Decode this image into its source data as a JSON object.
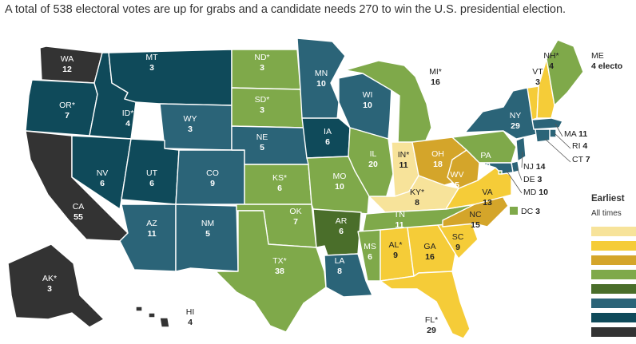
{
  "caption": "A total of 538 electoral votes are up for grabs and a candidate needs 270 to win the U.S. presidential election.",
  "colors": {
    "lightest_yellow": "#f7e39a",
    "yellow": "#f5cc38",
    "gold": "#d4a52a",
    "light_green": "#7fa94a",
    "dark_green": "#4a6e2a",
    "teal": "#2b6478",
    "dark_teal": "#0f4a5a",
    "charcoal": "#333333"
  },
  "legend": {
    "title": "Earliest",
    "subtitle": "All times",
    "swatches": [
      "#f7e39a",
      "#f5cc38",
      "#d4a52a",
      "#7fa94a",
      "#4a6e2a",
      "#2b6478",
      "#0f4a5a",
      "#333333"
    ]
  },
  "states": [
    {
      "id": "WA",
      "label": "WA",
      "votes": "12",
      "color": "#333333",
      "text": "#ffffff"
    },
    {
      "id": "OR",
      "label": "OR*",
      "votes": "7",
      "color": "#0f4a5a",
      "text": "#ffffff"
    },
    {
      "id": "CA",
      "label": "CA",
      "votes": "55",
      "color": "#333333",
      "text": "#ffffff"
    },
    {
      "id": "ID",
      "label": "ID*",
      "votes": "4",
      "color": "#0f4a5a",
      "text": "#ffffff"
    },
    {
      "id": "NV",
      "label": "NV",
      "votes": "6",
      "color": "#0f4a5a",
      "text": "#ffffff"
    },
    {
      "id": "MT",
      "label": "MT",
      "votes": "3",
      "color": "#0f4a5a",
      "text": "#ffffff"
    },
    {
      "id": "WY",
      "label": "WY",
      "votes": "3",
      "color": "#2b6478",
      "text": "#ffffff"
    },
    {
      "id": "UT",
      "label": "UT",
      "votes": "6",
      "color": "#0f4a5a",
      "text": "#ffffff"
    },
    {
      "id": "CO",
      "label": "CO",
      "votes": "9",
      "color": "#2b6478",
      "text": "#ffffff"
    },
    {
      "id": "AZ",
      "label": "AZ",
      "votes": "11",
      "color": "#2b6478",
      "text": "#ffffff"
    },
    {
      "id": "NM",
      "label": "NM",
      "votes": "5",
      "color": "#2b6478",
      "text": "#ffffff"
    },
    {
      "id": "ND",
      "label": "ND*",
      "votes": "3",
      "color": "#7fa94a",
      "text": "#ffffff"
    },
    {
      "id": "SD",
      "label": "SD*",
      "votes": "3",
      "color": "#7fa94a",
      "text": "#ffffff"
    },
    {
      "id": "NE",
      "label": "NE",
      "votes": "5",
      "color": "#2b6478",
      "text": "#ffffff"
    },
    {
      "id": "KS",
      "label": "KS*",
      "votes": "6",
      "color": "#7fa94a",
      "text": "#ffffff"
    },
    {
      "id": "OK",
      "label": "OK",
      "votes": "7",
      "color": "#7fa94a",
      "text": "#ffffff"
    },
    {
      "id": "TX",
      "label": "TX*",
      "votes": "38",
      "color": "#7fa94a",
      "text": "#ffffff"
    },
    {
      "id": "MN",
      "label": "MN",
      "votes": "10",
      "color": "#2b6478",
      "text": "#ffffff"
    },
    {
      "id": "IA",
      "label": "IA",
      "votes": "6",
      "color": "#0f4a5a",
      "text": "#ffffff"
    },
    {
      "id": "MO",
      "label": "MO",
      "votes": "10",
      "color": "#7fa94a",
      "text": "#ffffff"
    },
    {
      "id": "AR",
      "label": "AR",
      "votes": "6",
      "color": "#4a6e2a",
      "text": "#ffffff"
    },
    {
      "id": "LA",
      "label": "LA",
      "votes": "8",
      "color": "#2b6478",
      "text": "#ffffff"
    },
    {
      "id": "WI",
      "label": "WI",
      "votes": "10",
      "color": "#2b6478",
      "text": "#ffffff"
    },
    {
      "id": "IL",
      "label": "IL",
      "votes": "20",
      "color": "#7fa94a",
      "text": "#ffffff"
    },
    {
      "id": "MI",
      "label": "MI*",
      "votes": "16",
      "color": "#7fa94a",
      "text": "#222222"
    },
    {
      "id": "IN",
      "label": "IN*",
      "votes": "11",
      "color": "#f7e39a",
      "text": "#222222"
    },
    {
      "id": "OH",
      "label": "OH",
      "votes": "18",
      "color": "#d4a52a",
      "text": "#ffffff"
    },
    {
      "id": "KY",
      "label": "KY*",
      "votes": "8",
      "color": "#f7e39a",
      "text": "#222222"
    },
    {
      "id": "TN",
      "label": "TN",
      "votes": "11",
      "color": "#7fa94a",
      "text": "#ffffff"
    },
    {
      "id": "MS",
      "label": "MS",
      "votes": "6",
      "color": "#7fa94a",
      "text": "#ffffff"
    },
    {
      "id": "AL",
      "label": "AL*",
      "votes": "9",
      "color": "#f5cc38",
      "text": "#222222"
    },
    {
      "id": "GA",
      "label": "GA",
      "votes": "16",
      "color": "#f5cc38",
      "text": "#222222"
    },
    {
      "id": "FL",
      "label": "FL*",
      "votes": "29",
      "color": "#f5cc38",
      "text": "#222222"
    },
    {
      "id": "SC",
      "label": "SC",
      "votes": "9",
      "color": "#f5cc38",
      "text": "#222222"
    },
    {
      "id": "NC",
      "label": "NC",
      "votes": "15",
      "color": "#d4a52a",
      "text": "#222222"
    },
    {
      "id": "VA",
      "label": "VA",
      "votes": "13",
      "color": "#f5cc38",
      "text": "#222222"
    },
    {
      "id": "WV",
      "label": "WV",
      "votes": "5",
      "color": "#d4a52a",
      "text": "#ffffff"
    },
    {
      "id": "PA",
      "label": "PA",
      "votes": "20",
      "color": "#7fa94a",
      "text": "#ffffff"
    },
    {
      "id": "NY",
      "label": "NY",
      "votes": "29",
      "color": "#2b6478",
      "text": "#ffffff"
    },
    {
      "id": "VT",
      "label": "VT",
      "votes": "3",
      "color": "#f5cc38",
      "text": "#222222"
    },
    {
      "id": "NH",
      "label": "NH*",
      "votes": "4",
      "color": "#f5cc38",
      "text": "#222222"
    },
    {
      "id": "ME",
      "label": "ME",
      "votes": "4 electo",
      "color": "#7fa94a",
      "text": "#222222"
    },
    {
      "id": "AK",
      "label": "AK*",
      "votes": "3",
      "color": "#333333",
      "text": "#ffffff"
    },
    {
      "id": "HI",
      "label": "HI",
      "votes": "4",
      "color": "#333333",
      "text": "#222222"
    }
  ],
  "small_states": [
    {
      "id": "MA",
      "label": "MA",
      "votes": "11",
      "color": "#2b6478"
    },
    {
      "id": "RI",
      "label": "RI",
      "votes": "4",
      "color": "#2b6478"
    },
    {
      "id": "CT",
      "label": "CT",
      "votes": "7",
      "color": "#2b6478"
    },
    {
      "id": "NJ",
      "label": "NJ",
      "votes": "14",
      "color": "#2b6478"
    },
    {
      "id": "DE",
      "label": "DE",
      "votes": "3",
      "color": "#2b6478"
    },
    {
      "id": "MD",
      "label": "MD",
      "votes": "10",
      "color": "#2b6478"
    },
    {
      "id": "DC",
      "label": "DC",
      "votes": "3",
      "color": "#7fa94a"
    }
  ]
}
